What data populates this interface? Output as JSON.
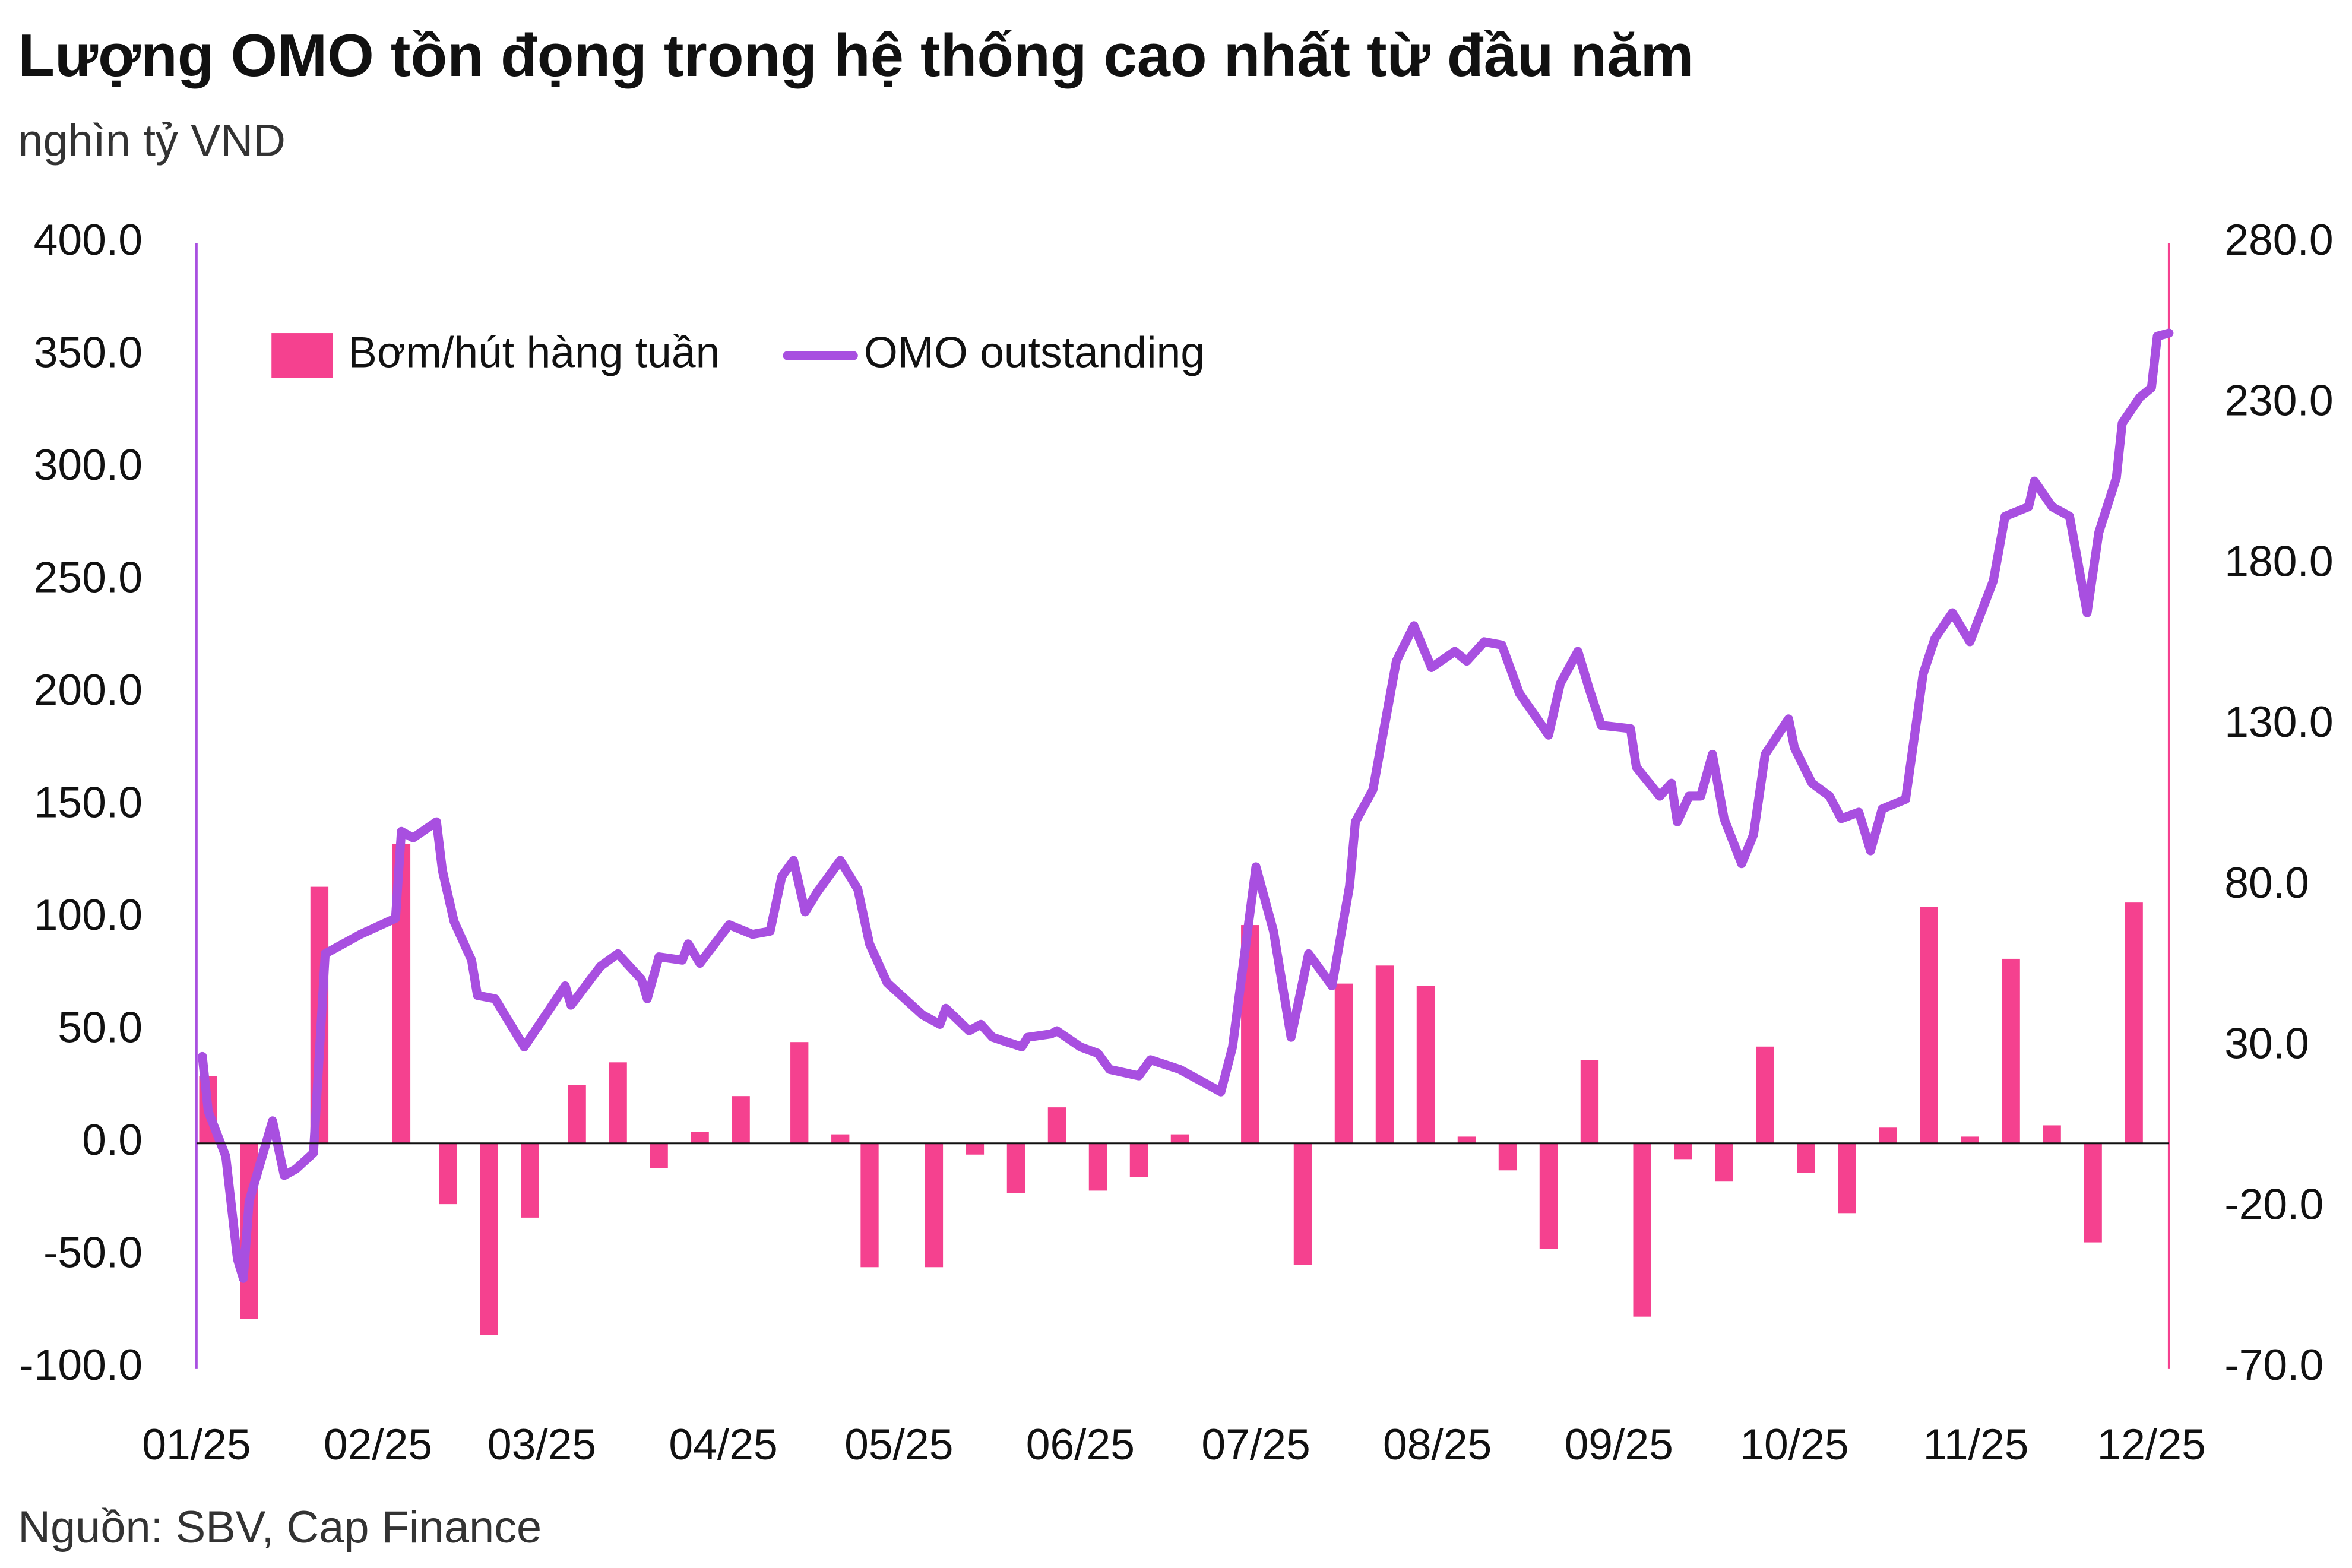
{
  "chart_data": {
    "type": "combo",
    "title": "Lượng OMO tồn đọng trong hệ thống cao nhất từ đầu năm",
    "subtitle": "nghìn tỷ VND",
    "source": "Nguồn: SBV, Cap Finance",
    "xlim": [
      0,
      337
    ],
    "xticks": [
      {
        "value": 0,
        "label": "01/25"
      },
      {
        "value": 31,
        "label": "02/25"
      },
      {
        "value": 59,
        "label": "03/25"
      },
      {
        "value": 90,
        "label": "04/25"
      },
      {
        "value": 120,
        "label": "05/25"
      },
      {
        "value": 151,
        "label": "06/25"
      },
      {
        "value": 181,
        "label": "07/25"
      },
      {
        "value": 212,
        "label": "08/25"
      },
      {
        "value": 243,
        "label": "09/25"
      },
      {
        "value": 273,
        "label": "10/25"
      },
      {
        "value": 304,
        "label": "11/25"
      },
      {
        "value": 334,
        "label": "12/25"
      }
    ],
    "ylim": [
      -100,
      400
    ],
    "yticks": [
      {
        "value": -100,
        "label": "-100.0"
      },
      {
        "value": -50,
        "label": "-50.0"
      },
      {
        "value": 0,
        "label": "0.0"
      },
      {
        "value": 50,
        "label": "50.0"
      },
      {
        "value": 100,
        "label": "100.0"
      },
      {
        "value": 150,
        "label": "150.0"
      },
      {
        "value": 200,
        "label": "200.0"
      },
      {
        "value": 250,
        "label": "250.0"
      },
      {
        "value": 300,
        "label": "300.0"
      },
      {
        "value": 350,
        "label": "350.0"
      },
      {
        "value": 400,
        "label": "400.0"
      }
    ],
    "y2lim": [
      -70,
      280
    ],
    "y2ticks": [
      {
        "value": -70,
        "label": "-70.0"
      },
      {
        "value": -20,
        "label": "-20.0"
      },
      {
        "value": 30,
        "label": "30.0"
      },
      {
        "value": 80,
        "label": "80.0"
      },
      {
        "value": 130,
        "label": "130.0"
      },
      {
        "value": 180,
        "label": "180.0"
      },
      {
        "value": 230,
        "label": "230.0"
      },
      {
        "value": 280,
        "label": "280.0"
      }
    ],
    "grid": false,
    "legend": "top-left",
    "series": [
      {
        "name": "Bơm/hút hàng tuần",
        "type": "bar",
        "color": "#f5418f",
        "x": [
          2,
          9,
          21,
          35,
          43,
          50,
          57,
          65,
          72,
          79,
          86,
          93,
          103,
          110,
          115,
          126,
          133,
          140,
          147,
          154,
          161,
          168,
          180,
          189,
          196,
          203,
          210,
          217,
          224,
          231,
          238,
          247,
          254,
          261,
          268,
          275,
          282,
          289,
          296,
          303,
          310,
          317,
          324,
          331
        ],
        "values": [
          30,
          -78,
          114,
          133,
          -27,
          -85,
          -33,
          26,
          36,
          -11,
          5,
          21,
          45,
          4,
          -55,
          -55,
          -5,
          -22,
          16,
          -21,
          -15,
          4,
          97,
          -54,
          71,
          79,
          70,
          3,
          -12,
          -47,
          37,
          -77,
          -7,
          -17,
          43,
          -13,
          -31,
          7,
          105,
          3,
          82,
          8,
          -44,
          107
        ]
      },
      {
        "name": "OMO outstanding",
        "type": "line",
        "color": "#a84fe0",
        "axis": "y2",
        "x": [
          1,
          2,
          5,
          7,
          8,
          9,
          13,
          15,
          17,
          20,
          22,
          28,
          34,
          35,
          37,
          41,
          42,
          44,
          47,
          48,
          51,
          56,
          63,
          64,
          69,
          72,
          76,
          77,
          79,
          83,
          84,
          86,
          91,
          95,
          98,
          100,
          102,
          104,
          106,
          110,
          113,
          115,
          118,
          124,
          127,
          128,
          132,
          134,
          136,
          141,
          142,
          146,
          147,
          151,
          154,
          156,
          161,
          163,
          168,
          172,
          175,
          177,
          181,
          184,
          187,
          190,
          194,
          197,
          198,
          201,
          205,
          208,
          211,
          215,
          217,
          220,
          223,
          226,
          231,
          233,
          236,
          238,
          240,
          245,
          246,
          250,
          252,
          253,
          255,
          257,
          259,
          261,
          264,
          266,
          268,
          272,
          273,
          276,
          279,
          281,
          284,
          286,
          288,
          292,
          295,
          297,
          300,
          303,
          307,
          309,
          313,
          314,
          317,
          320,
          323,
          325,
          328,
          329,
          332,
          334,
          335,
          337
        ],
        "values": [
          27,
          10,
          -4,
          -36,
          -42,
          -18,
          7,
          -10,
          -8,
          -3,
          59,
          65,
          70,
          97,
          95,
          100,
          85,
          69,
          57,
          46,
          45,
          30,
          49,
          43,
          55,
          59,
          51,
          45,
          58,
          57,
          62,
          56,
          68,
          65,
          66,
          83,
          88,
          72,
          78,
          88,
          79,
          62,
          50,
          40,
          37,
          42,
          35,
          37,
          33,
          30,
          33,
          34,
          35,
          30,
          28,
          23,
          21,
          26,
          23,
          19,
          16,
          30,
          86,
          66,
          33,
          59,
          49,
          80,
          100,
          110,
          150,
          161,
          148,
          153,
          150,
          156,
          155,
          140,
          127,
          143,
          153,
          141,
          130,
          129,
          117,
          108,
          112,
          100,
          108,
          108,
          121,
          101,
          87,
          96,
          121,
          132,
          123,
          112,
          108,
          101,
          103,
          91,
          104,
          107,
          146,
          157,
          165,
          156,
          175,
          195,
          198,
          206,
          198,
          195,
          165,
          190,
          207,
          224,
          232,
          235,
          251,
          252
        ]
      }
    ]
  }
}
